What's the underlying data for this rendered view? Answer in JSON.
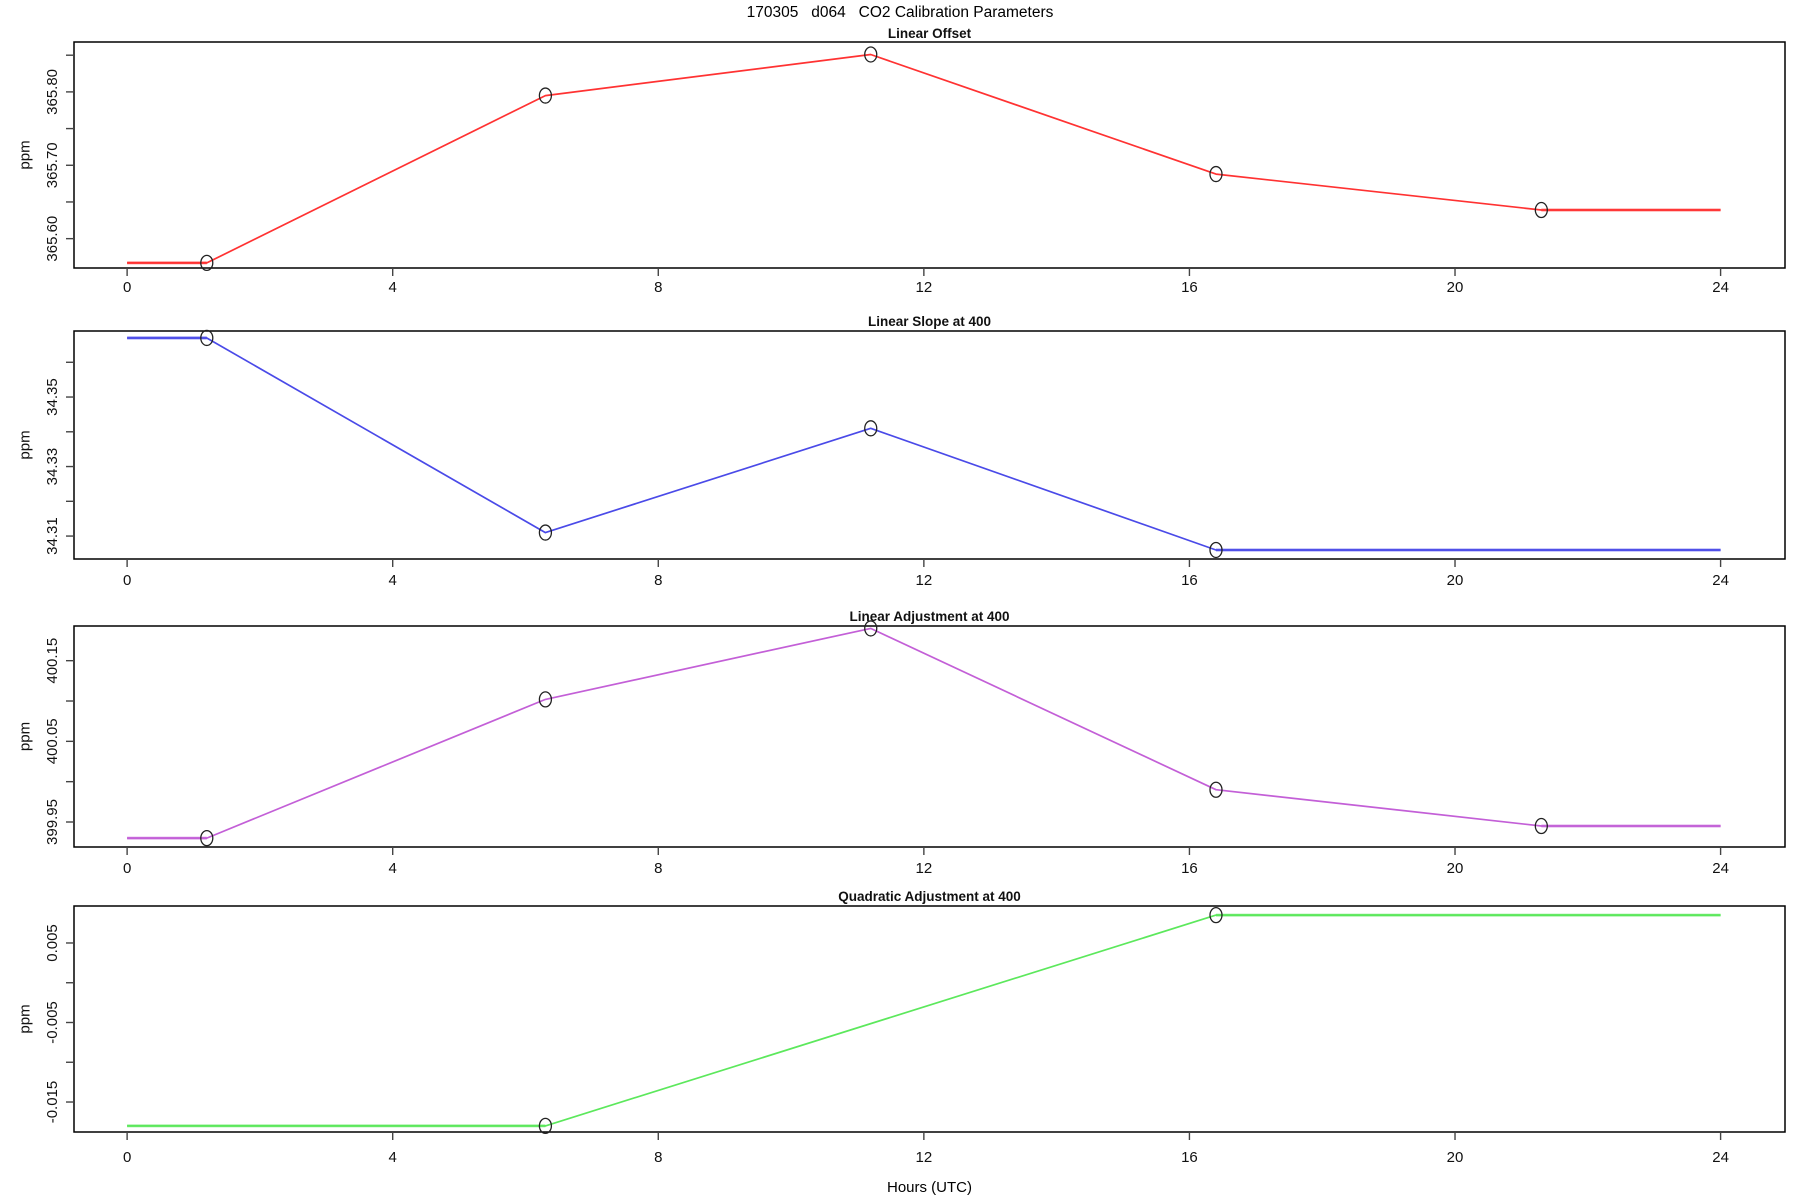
{
  "figure": {
    "title": "170305   d064   CO2 Calibration Parameters",
    "xlabel": "Hours (UTC)"
  },
  "chart_data": [
    {
      "type": "line",
      "title": "Linear Offset",
      "ylabel": "ppm",
      "xlabel": "Hours (UTC)",
      "color": "#FF3232",
      "marker": "open-circle",
      "marker_color": "#222222",
      "x": [
        1.2,
        6.3,
        11.2,
        16.4,
        21.3
      ],
      "y": [
        365.567,
        365.795,
        365.851,
        365.688,
        365.639
      ],
      "line": [
        [
          0,
          365.567
        ],
        [
          1.2,
          365.567
        ],
        [
          6.3,
          365.795
        ],
        [
          11.2,
          365.851
        ],
        [
          16.4,
          365.688
        ],
        [
          21.3,
          365.639
        ],
        [
          24,
          365.639
        ]
      ],
      "xlim": [
        -0.8,
        24.97
      ],
      "ylim": [
        365.56,
        365.868
      ],
      "xticks": [
        0,
        4,
        8,
        12,
        16,
        20,
        24
      ],
      "yticks": [
        365.6,
        365.65,
        365.7,
        365.75,
        365.8,
        365.85
      ],
      "ytick_labels": [
        "365.60",
        "",
        "365.70",
        "",
        "365.80",
        ""
      ]
    },
    {
      "type": "line",
      "title": "Linear Slope at 400",
      "ylabel": "ppm",
      "xlabel": "Hours (UTC)",
      "color": "#4A4AE8",
      "marker": "open-circle",
      "marker_color": "#222222",
      "x": [
        1.2,
        6.3,
        11.2,
        16.4
      ],
      "y": [
        34.367,
        34.311,
        34.341,
        34.306
      ],
      "line": [
        [
          0,
          34.367
        ],
        [
          1.2,
          34.367
        ],
        [
          6.3,
          34.311
        ],
        [
          11.2,
          34.341
        ],
        [
          16.4,
          34.306
        ],
        [
          24,
          34.306
        ]
      ],
      "xlim": [
        -0.8,
        24.97
      ],
      "ylim": [
        34.3034,
        34.369
      ],
      "xticks": [
        0,
        4,
        8,
        12,
        16,
        20,
        24
      ],
      "yticks": [
        34.31,
        34.32,
        34.33,
        34.34,
        34.35,
        34.36
      ],
      "ytick_labels": [
        "34.31",
        "",
        "34.33",
        "",
        "34.35",
        ""
      ]
    },
    {
      "type": "line",
      "title": "Linear Adjustment at 400",
      "ylabel": "ppm",
      "xlabel": "Hours (UTC)",
      "color": "#C35FD7",
      "marker": "open-circle",
      "marker_color": "#222222",
      "x": [
        1.2,
        6.3,
        11.2,
        16.4,
        21.3
      ],
      "y": [
        399.93,
        400.102,
        400.19,
        399.99,
        399.945
      ],
      "line": [
        [
          0,
          399.93
        ],
        [
          1.2,
          399.93
        ],
        [
          6.3,
          400.102
        ],
        [
          11.2,
          400.19
        ],
        [
          16.4,
          399.99
        ],
        [
          21.3,
          399.945
        ],
        [
          24,
          399.945
        ]
      ],
      "xlim": [
        -0.8,
        24.97
      ],
      "ylim": [
        399.919,
        400.193
      ],
      "xticks": [
        0,
        4,
        8,
        12,
        16,
        20,
        24
      ],
      "yticks": [
        399.95,
        400.0,
        400.05,
        400.1,
        400.15
      ],
      "ytick_labels": [
        "399.95",
        "",
        "400.05",
        "",
        "400.15"
      ]
    },
    {
      "type": "line",
      "title": "Quadratic Adjustment at 400",
      "ylabel": "ppm",
      "xlabel": "Hours (UTC)",
      "color": "#5CE85C",
      "marker": "open-circle",
      "marker_color": "#222222",
      "x": [
        6.3,
        16.4
      ],
      "y": [
        -0.018,
        0.0085
      ],
      "line": [
        [
          0,
          -0.018
        ],
        [
          6.3,
          -0.018
        ],
        [
          16.4,
          0.0085
        ],
        [
          24,
          0.0085
        ]
      ],
      "xlim": [
        -0.8,
        24.97
      ],
      "ylim": [
        -0.01877,
        0.00965
      ],
      "xticks": [
        0,
        4,
        8,
        12,
        16,
        20,
        24
      ],
      "yticks": [
        -0.015,
        -0.01,
        -0.005,
        0.0,
        0.005
      ],
      "ytick_labels": [
        "-0.015",
        "",
        "-0.005",
        "",
        "0.005"
      ]
    }
  ]
}
